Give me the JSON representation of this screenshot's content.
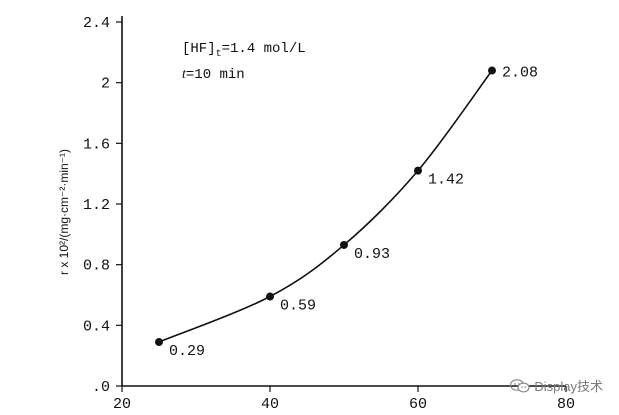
{
  "chart_data": {
    "type": "line",
    "ylabel": "r x 10²/(mg·cm⁻²·min⁻¹)",
    "xlim": [
      20,
      80
    ],
    "ylim": [
      0,
      2.4
    ],
    "x_ticks": [
      "20",
      "40",
      "60",
      "80"
    ],
    "y_ticks": [
      ".0",
      "0.4",
      "0.8",
      "1.2",
      "1.6",
      "2",
      "2.4"
    ],
    "x": [
      25,
      40,
      50,
      60,
      70
    ],
    "y": [
      0.29,
      0.59,
      0.93,
      1.42,
      2.08
    ],
    "data_labels": [
      "0.29",
      "0.59",
      "0.93",
      "1.42",
      "2.08"
    ],
    "annotations": [
      "[HF]t=1.4 mol/L",
      "t=10 min"
    ],
    "grid": false,
    "marker": "filled-circle",
    "color": "#111111"
  },
  "watermark": {
    "text": "Display技术",
    "icon": "wechat-icon"
  }
}
